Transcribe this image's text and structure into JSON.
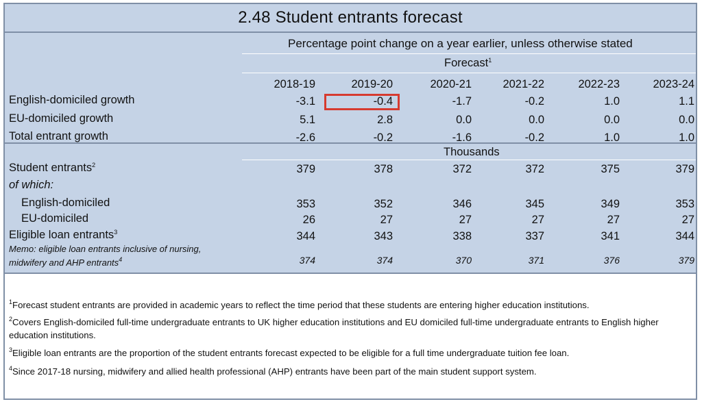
{
  "title": "2.48 Student entrants forecast",
  "subtitle": "Percentage point change on a year earlier, unless otherwise stated",
  "forecast_label": "Forecast",
  "forecast_sup": "1",
  "years": [
    "2018-19",
    "2019-20",
    "2020-21",
    "2021-22",
    "2022-23",
    "2023-24"
  ],
  "pct_rows": [
    {
      "label": "English-domiciled growth",
      "values": [
        "-3.1",
        "-0.4",
        "-1.7",
        "-0.2",
        "1.0",
        "1.1"
      ]
    },
    {
      "label": "EU-domiciled growth",
      "values": [
        "5.1",
        "2.8",
        "0.0",
        "0.0",
        "0.0",
        "0.0"
      ]
    },
    {
      "label": "Total entrant growth",
      "values": [
        "-2.6",
        "-0.2",
        "-1.6",
        "-0.2",
        "1.0",
        "1.0"
      ]
    }
  ],
  "thousands_label": "Thousands",
  "student_entrants": {
    "label": "Student entrants",
    "sup": "2",
    "values": [
      "379",
      "378",
      "372",
      "372",
      "375",
      "379"
    ]
  },
  "of_which": "of which:",
  "english_domiciled": {
    "label": "English-domiciled",
    "values": [
      "353",
      "352",
      "346",
      "345",
      "349",
      "353"
    ]
  },
  "eu_domiciled": {
    "label": "EU-domiciled",
    "values": [
      "26",
      "27",
      "27",
      "27",
      "27",
      "27"
    ]
  },
  "eligible_loan": {
    "label": "Eligible loan entrants",
    "sup": "3",
    "values": [
      "344",
      "343",
      "338",
      "337",
      "341",
      "344"
    ]
  },
  "memo": {
    "line1": "Memo: eligible loan entrants inclusive of nursing,",
    "line2": "midwifery and AHP entrants",
    "sup": "4",
    "values": [
      "374",
      "374",
      "370",
      "371",
      "376",
      "379"
    ]
  },
  "highlight_cell": {
    "row": "English-domiciled growth",
    "column": "2019-20"
  },
  "highlight_color": "#d63a2f",
  "band_color": "#c5d3e6",
  "footnotes": [
    {
      "num": "1",
      "text": "Forecast student entrants are provided in academic years to reflect the time period that these students are entering higher education institutions."
    },
    {
      "num": "2",
      "text": "Covers English-domiciled full-time undergraduate entrants to UK higher education institutions and EU domiciled full-time undergraduate entrants to English higher education institutions."
    },
    {
      "num": "3",
      "text": "Eligible loan entrants are the proportion of the student entrants forecast expected to be eligible for a full time undergraduate tuition fee loan."
    },
    {
      "num": "4",
      "text": "Since 2017-18 nursing, midwifery and allied health professional (AHP) entrants have been part of the main student support system."
    }
  ]
}
